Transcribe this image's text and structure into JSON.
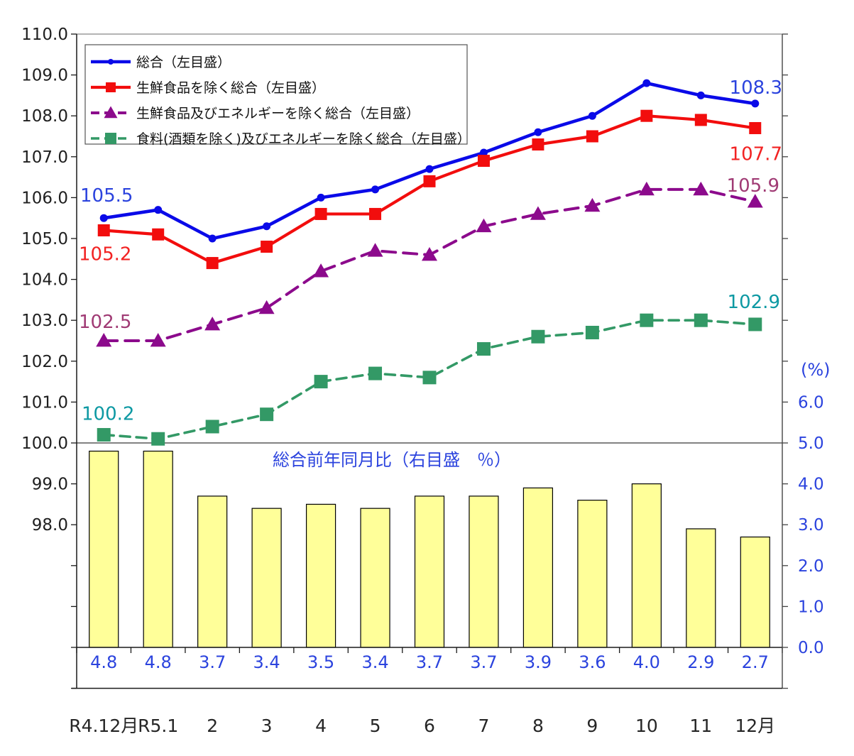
{
  "chart_data": {
    "type": "line+bar-combo",
    "title": "",
    "categories": [
      "R4.12月",
      "R5.1",
      "2",
      "3",
      "4",
      "5",
      "6",
      "7",
      "8",
      "9",
      "10",
      "11",
      "12月"
    ],
    "series": [
      {
        "name": "総合（左目盛）",
        "type": "line",
        "axis": "left",
        "style": "solid",
        "marker": "circle",
        "color": "#0a0ae8",
        "values": [
          105.5,
          105.7,
          105.0,
          105.3,
          106.0,
          106.2,
          106.7,
          107.1,
          107.6,
          108.0,
          108.8,
          108.5,
          108.3
        ]
      },
      {
        "name": "生鮮食品を除く総合（左目盛）",
        "type": "line",
        "axis": "left",
        "style": "solid",
        "marker": "square",
        "color": "#f20d0d",
        "values": [
          105.2,
          105.1,
          104.4,
          104.8,
          105.6,
          105.6,
          106.4,
          106.9,
          107.3,
          107.5,
          108.0,
          107.9,
          107.7
        ]
      },
      {
        "name": "生鮮食品及びエネルギーを除く総合（左目盛）",
        "type": "line",
        "axis": "left",
        "style": "dashed",
        "marker": "triangle",
        "color": "#8c0a8c",
        "values": [
          102.5,
          102.5,
          102.9,
          103.3,
          104.2,
          104.7,
          104.6,
          105.3,
          105.6,
          105.8,
          106.2,
          106.2,
          105.9
        ]
      },
      {
        "name": "食料(酒類を除く)及びエネルギーを除く総合（左目盛）",
        "type": "line",
        "axis": "left",
        "style": "dashed",
        "marker": "square",
        "color": "#339966",
        "values": [
          100.2,
          100.1,
          100.4,
          100.7,
          101.5,
          101.7,
          101.6,
          102.3,
          102.6,
          102.7,
          103.0,
          103.0,
          102.9
        ]
      },
      {
        "name": "総合前年同月比（右目盛　％）",
        "type": "bar",
        "axis": "right",
        "color": "#ffff99",
        "border_color": "#000000",
        "values": [
          4.8,
          4.8,
          3.7,
          3.4,
          3.5,
          3.4,
          3.7,
          3.7,
          3.9,
          3.6,
          4.0,
          2.9,
          2.7
        ],
        "data_labels": [
          "4.8",
          "4.8",
          "3.7",
          "3.4",
          "3.5",
          "3.4",
          "3.7",
          "3.7",
          "3.9",
          "3.6",
          "4.0",
          "2.9",
          "2.7"
        ],
        "data_label_color": "#2b43de"
      }
    ],
    "bar_series_inner_title": {
      "text": "総合前年同月比（右目盛　％）",
      "color": "#2b43de"
    },
    "point_annotations": [
      {
        "series": 0,
        "point": "first",
        "text": "105.5",
        "color": "#2b43de"
      },
      {
        "series": 1,
        "point": "first",
        "text": "105.2",
        "color": "#f22222"
      },
      {
        "series": 2,
        "point": "first",
        "text": "102.5",
        "color": "#a03a74"
      },
      {
        "series": 3,
        "point": "first",
        "text": "100.2",
        "color": "#0d99a3"
      },
      {
        "series": 0,
        "point": "last",
        "text": "108.3",
        "color": "#2b43de"
      },
      {
        "series": 1,
        "point": "last",
        "text": "107.7",
        "color": "#f22222"
      },
      {
        "series": 2,
        "point": "last",
        "text": "105.9",
        "color": "#a03a74"
      },
      {
        "series": 3,
        "point": "last",
        "text": "102.9",
        "color": "#0d99a3"
      }
    ],
    "left_axis": {
      "min": 94,
      "max": 110,
      "tick_labels": [
        "110.0",
        "109.0",
        "108.0",
        "107.0",
        "106.0",
        "105.0",
        "104.0",
        "103.0",
        "102.0",
        "101.0",
        "100.0",
        "99.0",
        "98.0"
      ],
      "label_color": "#1f1f1f"
    },
    "right_axis": {
      "min": -1,
      "max": 15,
      "unit_label": "(%)",
      "tick_labels": [
        "6.0",
        "5.0",
        "4.0",
        "3.0",
        "2.0",
        "1.0",
        "0.0"
      ],
      "label_color": "#2b43de"
    },
    "grid": {
      "line_at_left_value": 100.0,
      "bar_baseline_right_value": 0.0
    },
    "legend_position": "top-left-inside",
    "background": "#ffffff"
  }
}
